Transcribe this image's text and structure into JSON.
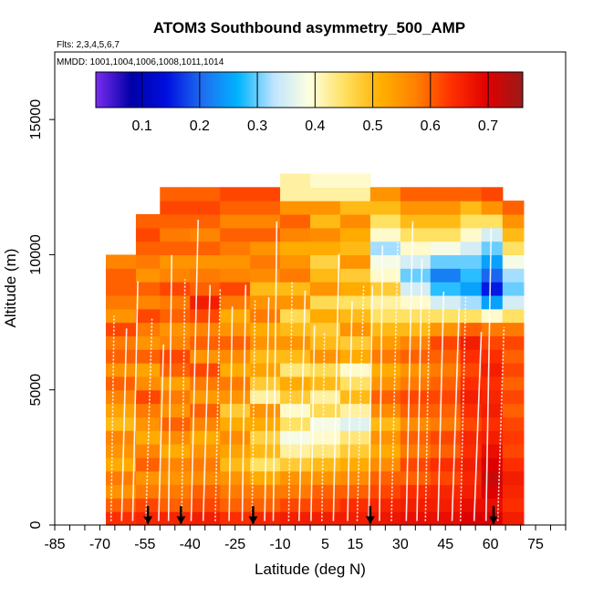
{
  "chart_data": {
    "type": "heatmap",
    "title": "ATOM3 Southbound asymmetry_500_AMP",
    "subtitle_flights": "Flts: 2,3,4,5,6,7",
    "subtitle_dates": "MMDD: 1001,1004,1006,1008,1011,1014",
    "xlabel": "Latitude (deg N)",
    "ylabel": "Altitude (m)",
    "xlim": [
      -85,
      85
    ],
    "ylim": [
      0,
      17500
    ],
    "x_ticks": [
      -85,
      -70,
      -55,
      -40,
      -25,
      -10,
      5,
      15,
      30,
      45,
      60,
      75
    ],
    "x_tick_labels": [
      "-85",
      "-70",
      "-55",
      "-40",
      "-25",
      "-10",
      "5",
      "15",
      "30",
      "45",
      "60",
      "75"
    ],
    "y_ticks": [
      0,
      5000,
      10000,
      15000
    ],
    "y_tick_labels": [
      "0",
      "5000",
      "10000",
      "15000"
    ],
    "colorbar": {
      "min": 0.02,
      "max": 0.76,
      "ticks": [
        0.1,
        0.2,
        0.3,
        0.4,
        0.5,
        0.6,
        0.7
      ],
      "tick_labels": [
        "0.1",
        "0.2",
        "0.3",
        "0.4",
        "0.5",
        "0.6",
        "0.7"
      ],
      "colors": [
        "#7b2cf0",
        "#0000a8",
        "#0010e0",
        "#1e6ef0",
        "#00b4ff",
        "#bfe4ff",
        "#ffffe0",
        "#ffe060",
        "#ffb000",
        "#ff8000",
        "#ff3000",
        "#e00000",
        "#9c1a1a"
      ]
    },
    "arrows_latitude": [
      -54,
      -43,
      -19,
      20,
      61
    ],
    "columns": [
      {
        "lat0": -68,
        "lat1": -58,
        "top": 10000,
        "values": [
          0.64,
          0.6,
          0.55,
          0.58,
          0.52,
          0.55,
          0.57,
          0.5,
          0.53,
          0.57,
          0.6,
          0.55,
          0.6,
          0.58,
          0.62,
          0.55,
          0.58,
          0.6,
          0.6,
          0.57
        ]
      },
      {
        "lat0": -58,
        "lat1": -50,
        "top": 11500,
        "values": [
          0.65,
          0.62,
          0.58,
          0.55,
          0.6,
          0.57,
          0.52,
          0.55,
          0.58,
          0.62,
          0.56,
          0.53,
          0.6,
          0.55,
          0.58,
          0.62,
          0.57,
          0.6,
          0.55,
          0.58,
          0.6,
          0.62,
          0.6
        ]
      },
      {
        "lat0": -50,
        "lat1": -40,
        "top": 12500,
        "values": [
          0.65,
          0.6,
          0.58,
          0.55,
          0.57,
          0.52,
          0.56,
          0.6,
          0.55,
          0.58,
          0.53,
          0.6,
          0.62,
          0.57,
          0.55,
          0.6,
          0.58,
          0.62,
          0.57,
          0.55,
          0.6,
          0.58,
          0.6,
          0.62,
          0.6
        ]
      },
      {
        "lat0": -40,
        "lat1": -30,
        "top": 12500,
        "values": [
          0.66,
          0.62,
          0.6,
          0.56,
          0.58,
          0.55,
          0.52,
          0.57,
          0.6,
          0.54,
          0.58,
          0.62,
          0.55,
          0.6,
          0.57,
          0.62,
          0.66,
          0.6,
          0.58,
          0.55,
          0.6,
          0.57,
          0.6,
          0.62,
          0.6
        ]
      },
      {
        "lat0": -30,
        "lat1": -20,
        "top": 12500,
        "values": [
          0.64,
          0.6,
          0.58,
          0.55,
          0.5,
          0.53,
          0.56,
          0.52,
          0.48,
          0.55,
          0.58,
          0.52,
          0.56,
          0.6,
          0.55,
          0.52,
          0.58,
          0.62,
          0.57,
          0.55,
          0.58,
          0.6,
          0.57,
          0.6,
          0.62
        ]
      },
      {
        "lat0": -20,
        "lat1": -10,
        "top": 12500,
        "values": [
          0.65,
          0.6,
          0.58,
          0.52,
          0.45,
          0.5,
          0.47,
          0.52,
          0.55,
          0.42,
          0.48,
          0.53,
          0.5,
          0.55,
          0.52,
          0.58,
          0.55,
          0.5,
          0.56,
          0.58,
          0.55,
          0.6,
          0.57,
          0.6,
          0.62
        ]
      },
      {
        "lat0": -10,
        "lat1": 0,
        "top": 13000,
        "values": [
          0.66,
          0.62,
          0.58,
          0.55,
          0.48,
          0.42,
          0.38,
          0.45,
          0.4,
          0.48,
          0.52,
          0.44,
          0.5,
          0.55,
          0.5,
          0.46,
          0.55,
          0.5,
          0.58,
          0.55,
          0.52,
          0.57,
          0.6,
          0.55,
          0.42,
          0.42
        ]
      },
      {
        "lat0": 0,
        "lat1": 10,
        "top": 13000,
        "values": [
          0.66,
          0.62,
          0.6,
          0.55,
          0.5,
          0.44,
          0.4,
          0.38,
          0.46,
          0.42,
          0.5,
          0.46,
          0.55,
          0.5,
          0.48,
          0.52,
          0.46,
          0.55,
          0.5,
          0.47,
          0.52,
          0.56,
          0.5,
          0.55,
          0.42,
          0.4
        ]
      },
      {
        "lat0": 10,
        "lat1": 20,
        "top": 13000,
        "values": [
          0.66,
          0.64,
          0.6,
          0.56,
          0.52,
          0.48,
          0.44,
          0.36,
          0.42,
          0.5,
          0.45,
          0.4,
          0.52,
          0.48,
          0.55,
          0.5,
          0.45,
          0.52,
          0.48,
          0.55,
          0.5,
          0.52,
          0.56,
          0.5,
          0.42,
          0.4
        ]
      },
      {
        "lat0": 20,
        "lat1": 30,
        "top": 12500,
        "values": [
          0.67,
          0.65,
          0.62,
          0.6,
          0.56,
          0.52,
          0.55,
          0.5,
          0.56,
          0.6,
          0.55,
          0.52,
          0.58,
          0.54,
          0.5,
          0.45,
          0.42,
          0.48,
          0.4,
          0.38,
          0.32,
          0.4,
          0.45,
          0.5,
          0.55
        ]
      },
      {
        "lat0": 30,
        "lat1": 40,
        "top": 12500,
        "values": [
          0.68,
          0.66,
          0.64,
          0.6,
          0.62,
          0.58,
          0.6,
          0.56,
          0.6,
          0.62,
          0.58,
          0.55,
          0.6,
          0.57,
          0.5,
          0.45,
          0.4,
          0.35,
          0.3,
          0.35,
          0.4,
          0.45,
          0.5,
          0.55,
          0.6
        ]
      },
      {
        "lat0": 40,
        "lat1": 50,
        "top": 12500,
        "values": [
          0.68,
          0.66,
          0.65,
          0.62,
          0.64,
          0.6,
          0.62,
          0.58,
          0.6,
          0.62,
          0.6,
          0.58,
          0.6,
          0.62,
          0.55,
          0.45,
          0.35,
          0.28,
          0.22,
          0.3,
          0.38,
          0.45,
          0.5,
          0.55,
          0.6
        ]
      },
      {
        "lat0": 50,
        "lat1": 57,
        "top": 12500,
        "values": [
          0.7,
          0.68,
          0.66,
          0.65,
          0.66,
          0.64,
          0.65,
          0.62,
          0.64,
          0.66,
          0.64,
          0.62,
          0.64,
          0.66,
          0.6,
          0.45,
          0.32,
          0.25,
          0.28,
          0.3,
          0.35,
          0.4,
          0.45,
          0.5,
          0.6
        ]
      },
      {
        "lat0": 57,
        "lat1": 64,
        "top": 12500,
        "values": [
          0.7,
          0.68,
          0.7,
          0.72,
          0.7,
          0.68,
          0.66,
          0.64,
          0.66,
          0.65,
          0.64,
          0.66,
          0.64,
          0.62,
          0.58,
          0.4,
          0.25,
          0.15,
          0.2,
          0.25,
          0.3,
          0.35,
          0.45,
          0.55,
          0.62
        ]
      },
      {
        "lat0": 64,
        "lat1": 71,
        "top": 12000,
        "values": [
          0.66,
          0.64,
          0.65,
          0.66,
          0.64,
          0.62,
          0.63,
          0.62,
          0.6,
          0.62,
          0.6,
          0.62,
          0.6,
          0.62,
          0.58,
          0.45,
          0.35,
          0.3,
          0.32,
          0.38,
          0.45,
          0.5,
          0.55,
          0.6
        ]
      }
    ]
  }
}
